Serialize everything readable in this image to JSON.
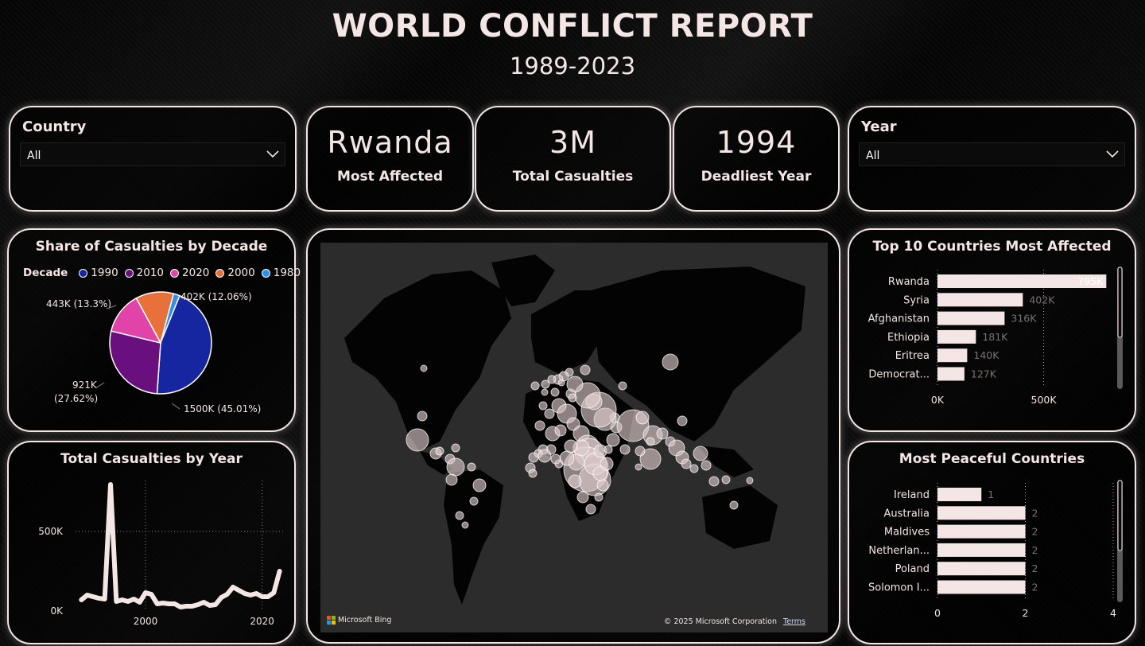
{
  "header": {
    "title": "WORLD CONFLICT REPORT",
    "subtitle": "1989-2023"
  },
  "slicers": {
    "country": {
      "title": "Country",
      "value": "All"
    },
    "year": {
      "title": "Year",
      "value": "All"
    }
  },
  "kpis": [
    {
      "value": "Rwanda",
      "label": "Most Affected"
    },
    {
      "value": "3M",
      "label": "Total Casualties"
    },
    {
      "value": "1994",
      "label": "Deadliest Year"
    }
  ],
  "colors": {
    "accent": "#f3e6e4",
    "background": "#050505",
    "map_water": "#2c2c2c",
    "map_land": "#030303"
  },
  "icons": {
    "dropdown": "chevron-down-icon"
  },
  "pie": {
    "title": "Share of Casualties by Decade",
    "legend_title": "Decade",
    "legend": [
      {
        "name": "1990",
        "color": "#1626a0"
      },
      {
        "name": "2010",
        "color": "#6a0f7e"
      },
      {
        "name": "2020",
        "color": "#e044a9"
      },
      {
        "name": "2000",
        "color": "#e8703a"
      },
      {
        "name": "1980",
        "color": "#2d8ff0"
      }
    ],
    "labels": {
      "l1990": "1500K (45.01%)",
      "l2010a": "921K",
      "l2010b": "(27.62%)",
      "l2020": "443K (13.3%)",
      "l2000": "402K (12.06%)"
    }
  },
  "line": {
    "title": "Total Casualties by Year"
  },
  "map": {
    "attribution": "Microsoft Bing",
    "copyright": "© 2025 Microsoft Corporation",
    "terms": "Terms"
  },
  "top10": {
    "title": "Top 10 Countries Most Affected"
  },
  "peaceful": {
    "title": "Most Peaceful Countries"
  },
  "chart_data": [
    {
      "type": "pie",
      "title": "Share of Casualties by Decade",
      "legend_title": "Decade",
      "slices": [
        {
          "name": "1990",
          "value": 1500000,
          "percent": 45.01,
          "label": "1500K (45.01%)"
        },
        {
          "name": "2010",
          "value": 921000,
          "percent": 27.62,
          "label": "921K (27.62%)"
        },
        {
          "name": "2020",
          "value": 443000,
          "percent": 13.3,
          "label": "443K (13.3%)"
        },
        {
          "name": "2000",
          "value": 402000,
          "percent": 12.06,
          "label": "402K (12.06%)"
        },
        {
          "name": "1980",
          "value": 67000,
          "percent": 2.01
        }
      ]
    },
    {
      "type": "line",
      "title": "Total Casualties by Year",
      "x": [
        1989,
        1990,
        1991,
        1992,
        1993,
        1994,
        1995,
        1996,
        1997,
        1998,
        1999,
        2000,
        2001,
        2002,
        2003,
        2004,
        2005,
        2006,
        2007,
        2008,
        2009,
        2010,
        2011,
        2012,
        2013,
        2014,
        2015,
        2016,
        2017,
        2018,
        2019,
        2020,
        2021,
        2022,
        2023
      ],
      "y": [
        70000,
        100000,
        90000,
        80000,
        75000,
        795000,
        60000,
        70000,
        60000,
        75000,
        55000,
        115000,
        105000,
        45000,
        50000,
        45000,
        45000,
        25000,
        30000,
        30000,
        40000,
        55000,
        35000,
        40000,
        85000,
        105000,
        150000,
        130000,
        110000,
        100000,
        110000,
        90000,
        90000,
        115000,
        250000
      ],
      "xticks": [
        "2000",
        "2020"
      ],
      "yticks": [
        "0K",
        "500K"
      ],
      "ylim": [
        0,
        820000
      ],
      "xlim": [
        1988,
        2024
      ]
    },
    {
      "type": "bar",
      "orientation": "horizontal",
      "title": "Top 10 Countries Most Affected",
      "categories": [
        "Rwanda",
        "Syria",
        "Afghanistan",
        "Ethiopia",
        "Eritrea",
        "Democrat..."
      ],
      "values": [
        795000,
        402000,
        316000,
        181000,
        140000,
        127000
      ],
      "data_labels": [
        "795K",
        "402K",
        "316K",
        "181K",
        "140K",
        "127K"
      ],
      "xticks": [
        "0K",
        "500K"
      ],
      "xlim": [
        0,
        790000
      ]
    },
    {
      "type": "bar",
      "orientation": "horizontal",
      "title": "Most Peaceful Countries",
      "categories": [
        "Ireland",
        "Australia",
        "Maldives",
        "Netherlan...",
        "Poland",
        "Solomon I..."
      ],
      "values": [
        1,
        2,
        2,
        2,
        2,
        2
      ],
      "data_labels": [
        "1",
        "2",
        "2",
        "2",
        "2",
        "2"
      ],
      "xticks": [
        "0",
        "2",
        "4"
      ],
      "xlim": [
        0,
        4
      ]
    }
  ]
}
